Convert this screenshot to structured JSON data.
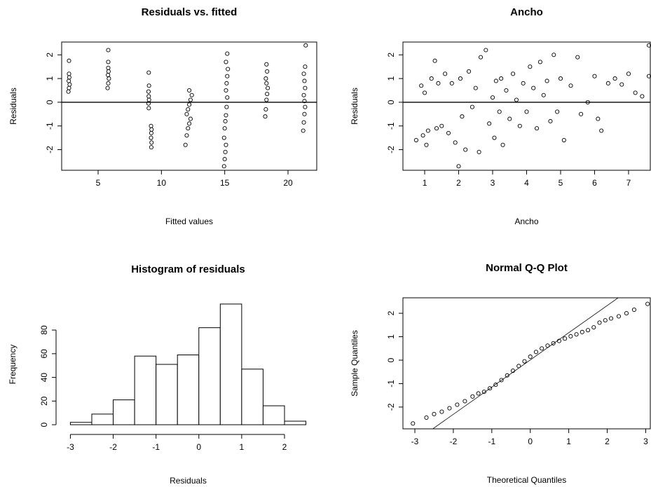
{
  "chart_data": [
    {
      "type": "scatter",
      "title": "Residuals vs. fitted",
      "xlabel": "Fitted values",
      "ylabel": "Residuals",
      "x": [
        2.65,
        2.7,
        2.75,
        2.68,
        2.72,
        2.7,
        2.7,
        5.75,
        5.8,
        5.85,
        5.78,
        5.82,
        5.8,
        5.8,
        5.8,
        9.0,
        8.98,
        9.02,
        9.0,
        8.98,
        9.02,
        9.0,
        9.2,
        9.22,
        9.18,
        9.2,
        9.22,
        9.18,
        11.9,
        12.0,
        12.1,
        12.2,
        12.3,
        12.0,
        12.1,
        12.2,
        12.3,
        12.4,
        12.2,
        14.95,
        15.0,
        15.05,
        15.1,
        14.95,
        15.0,
        15.05,
        15.1,
        15.15,
        15.2,
        15.1,
        15.15,
        15.2,
        15.25,
        15.1,
        15.2,
        18.2,
        18.25,
        18.3,
        18.35,
        18.4,
        18.3,
        18.25,
        18.35,
        18.3,
        21.2,
        21.25,
        21.3,
        21.35,
        21.3,
        21.25,
        21.35,
        21.3,
        21.25,
        21.35,
        21.4
      ],
      "y": [
        0.45,
        0.6,
        0.75,
        0.9,
        1.05,
        1.2,
        1.75,
        0.6,
        0.8,
        1.0,
        1.15,
        1.3,
        1.45,
        1.7,
        2.2,
        -0.25,
        -0.05,
        0.1,
        0.25,
        0.45,
        0.7,
        1.25,
        -1.9,
        -1.7,
        -1.5,
        -1.3,
        -1.15,
        -1.0,
        -1.8,
        -1.4,
        -1.1,
        -0.9,
        -0.7,
        -0.5,
        -0.3,
        -0.1,
        0.1,
        0.3,
        0.5,
        -2.7,
        -2.4,
        -2.1,
        -1.8,
        -1.5,
        -1.1,
        -0.8,
        -0.55,
        -0.2,
        0.2,
        0.5,
        0.8,
        1.1,
        1.4,
        1.7,
        2.05,
        -0.6,
        -0.3,
        0.1,
        0.35,
        0.6,
        0.8,
        1.0,
        1.3,
        1.6,
        -1.2,
        -0.85,
        -0.5,
        -0.2,
        0.05,
        0.3,
        0.6,
        0.9,
        1.2,
        1.5,
        2.4
      ],
      "xlim": [
        2.12,
        22.27
      ],
      "ylim": [
        -2.87,
        2.54
      ],
      "xticks": [
        5,
        10,
        15,
        20
      ],
      "yticks": [
        -2,
        -1,
        0,
        1,
        2
      ],
      "hline": 0,
      "color": "#000000"
    },
    {
      "type": "scatter",
      "title": "Ancho",
      "xlabel": "Ancho",
      "ylabel": "Residuals",
      "x": [
        0.75,
        0.9,
        0.95,
        1.0,
        1.05,
        1.1,
        1.2,
        1.3,
        1.35,
        1.4,
        1.5,
        1.6,
        1.7,
        1.8,
        1.9,
        2.0,
        2.05,
        2.1,
        2.2,
        2.3,
        2.4,
        2.5,
        2.6,
        2.65,
        2.8,
        2.9,
        3.0,
        3.05,
        3.1,
        3.2,
        3.25,
        3.3,
        3.4,
        3.5,
        3.6,
        3.7,
        3.8,
        3.9,
        4.0,
        4.1,
        4.2,
        4.3,
        4.4,
        4.5,
        4.6,
        4.7,
        4.8,
        4.9,
        5.0,
        5.1,
        5.3,
        5.5,
        5.6,
        5.8,
        6.0,
        6.1,
        6.2,
        6.4,
        6.6,
        6.8,
        7.0,
        7.2,
        7.4,
        7.6,
        7.6
      ],
      "y": [
        -1.6,
        0.7,
        -1.4,
        0.4,
        -1.8,
        -1.2,
        1.0,
        1.75,
        -1.1,
        0.8,
        -1.0,
        1.2,
        -1.3,
        0.8,
        -1.7,
        -2.7,
        1.0,
        -0.6,
        -2.0,
        1.3,
        -0.2,
        0.6,
        -2.1,
        1.9,
        2.2,
        -0.9,
        0.2,
        -1.5,
        0.9,
        -0.4,
        1.0,
        -1.8,
        0.5,
        -0.7,
        1.2,
        0.1,
        -1.0,
        0.8,
        -0.4,
        1.5,
        0.6,
        -1.1,
        1.7,
        0.3,
        0.9,
        -0.8,
        2.0,
        -0.4,
        1.0,
        -1.6,
        0.7,
        1.9,
        -0.5,
        0.0,
        1.1,
        -0.7,
        -1.2,
        0.8,
        1.0,
        0.75,
        1.2,
        0.4,
        0.25,
        2.4,
        1.1
      ],
      "xlim": [
        0.36,
        7.64
      ],
      "ylim": [
        -2.87,
        2.54
      ],
      "xticks": [
        1,
        2,
        3,
        4,
        5,
        6,
        7
      ],
      "yticks": [
        -2,
        -1,
        0,
        1,
        2
      ],
      "hline": 0,
      "color": "#000000"
    },
    {
      "type": "histogram",
      "title": "Histogram of residuals",
      "xlabel": "Residuals",
      "ylabel": "Frequency",
      "bins": [
        -3,
        -2.5,
        -2,
        -1.5,
        -1,
        -0.5,
        0,
        0.5,
        1,
        1.5,
        2,
        2.5
      ],
      "values": [
        2,
        9,
        21,
        58,
        51,
        59,
        82,
        102,
        47,
        16,
        3
      ],
      "xlim": [
        -3.22,
        2.72
      ],
      "ylim": [
        -4.08,
        106.08
      ],
      "xticks": [
        -3,
        -2,
        -1,
        0,
        1,
        2
      ],
      "yticks": [
        0,
        20,
        40,
        60,
        80
      ],
      "color": "#000000"
    },
    {
      "type": "qq",
      "title": "Normal Q-Q Plot",
      "xlabel": "Theoretical Quantiles",
      "ylabel": "Sample Quantiles",
      "x": [
        -3.05,
        -2.7,
        -2.5,
        -2.3,
        -2.1,
        -1.9,
        -1.7,
        -1.5,
        -1.35,
        -1.2,
        -1.05,
        -0.9,
        -0.75,
        -0.6,
        -0.45,
        -0.3,
        -0.15,
        0.0,
        0.15,
        0.3,
        0.45,
        0.6,
        0.75,
        0.9,
        1.05,
        1.2,
        1.35,
        1.5,
        1.65,
        1.8,
        1.95,
        2.1,
        2.3,
        2.5,
        2.7,
        3.05
      ],
      "y": [
        -2.7,
        -2.45,
        -2.3,
        -2.2,
        -2.05,
        -1.9,
        -1.75,
        -1.55,
        -1.42,
        -1.35,
        -1.2,
        -1.05,
        -0.85,
        -0.65,
        -0.45,
        -0.25,
        -0.05,
        0.15,
        0.35,
        0.5,
        0.62,
        0.72,
        0.82,
        0.92,
        1.02,
        1.1,
        1.2,
        1.28,
        1.4,
        1.6,
        1.7,
        1.78,
        1.87,
        2.0,
        2.15,
        2.4
      ],
      "abline": {
        "intercept": 0.01,
        "slope": 1.16
      },
      "xlim": [
        -3.31,
        3.12
      ],
      "ylim": [
        -2.93,
        2.66
      ],
      "xticks": [
        -3,
        -2,
        -1,
        0,
        1,
        2,
        3
      ],
      "yticks": [
        -2,
        -1,
        0,
        1,
        2
      ],
      "color": "#000000"
    }
  ]
}
